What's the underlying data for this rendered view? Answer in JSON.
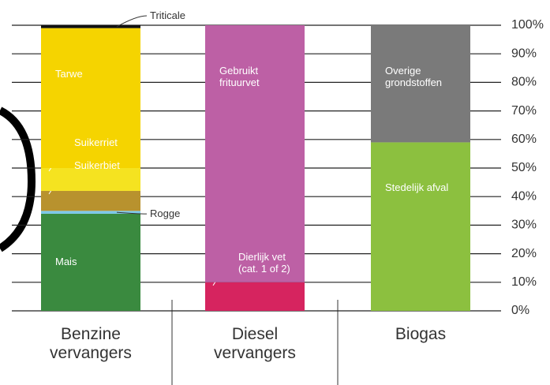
{
  "chart_data": {
    "type": "stacked-bar",
    "bars": [
      {
        "category": "Benzine vervangers",
        "segments": [
          {
            "name": "Mais",
            "color": "#3a8a3f",
            "value": 34
          },
          {
            "name": "Rogge",
            "color": "#7cc8e8",
            "value": 1
          },
          {
            "name": "Suikerbiet",
            "color": "#b8922e",
            "value": 7
          },
          {
            "name": "Suikerriet",
            "color": "#f5e320",
            "value": 8
          },
          {
            "name": "Tarwe",
            "color": "#f5d400",
            "value": 49
          },
          {
            "name": "Triticale",
            "color": "#111111",
            "value": 1
          }
        ]
      },
      {
        "category": "Diesel vervangers",
        "segments": [
          {
            "name": "Dierlijk vet (cat. 1 of 2)",
            "color": "#d6245f",
            "value": 10
          },
          {
            "name": "Gebruikt frituurvet",
            "color": "#bd60a5",
            "value": 90
          }
        ]
      },
      {
        "category": "Biogas",
        "segments": [
          {
            "name": "Stedelijk afval",
            "color": "#8cc03f",
            "value": 59
          },
          {
            "name": "Overige grondstoffen",
            "color": "#7a7a7a",
            "value": 41
          }
        ]
      }
    ],
    "ylim": [
      0,
      100
    ],
    "yticks": [
      {
        "value": 0,
        "label": "0%"
      },
      {
        "value": 10,
        "label": "10%"
      },
      {
        "value": 20,
        "label": "20%"
      },
      {
        "value": 30,
        "label": "30%"
      },
      {
        "value": 40,
        "label": "40%"
      },
      {
        "value": 50,
        "label": "50%"
      },
      {
        "value": 60,
        "label": "60%"
      },
      {
        "value": 70,
        "label": "70%"
      },
      {
        "value": 80,
        "label": "80%"
      },
      {
        "value": 90,
        "label": "90%"
      },
      {
        "value": 100,
        "label": "100%"
      }
    ],
    "grid": true
  }
}
